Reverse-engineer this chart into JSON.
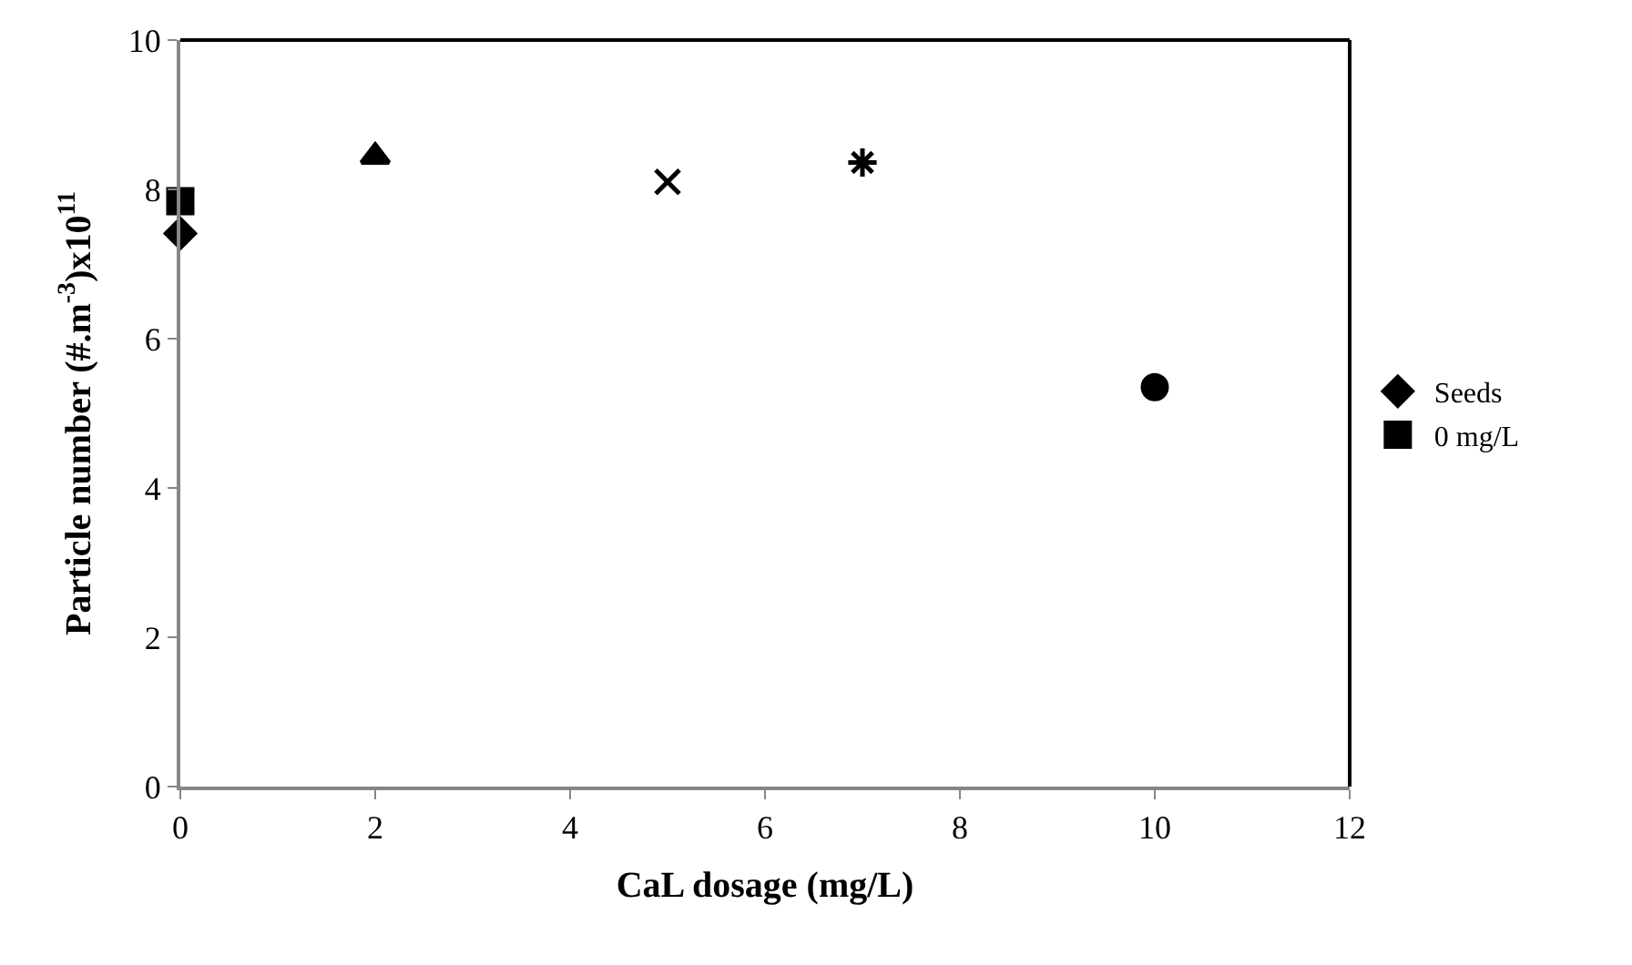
{
  "chart_data": {
    "type": "scatter",
    "xlabel": "CaL dosage (mg/L)",
    "ylabel": "Particle number (#.m$^{-3}$)x10$^{11}$",
    "xlim": [
      0,
      12
    ],
    "xticks": [
      0,
      2,
      4,
      6,
      8,
      10,
      12
    ],
    "ylim": [
      0,
      10
    ],
    "yticks": [
      0,
      2,
      4,
      6,
      8,
      10
    ],
    "legend": "right",
    "series": [
      {
        "name": "Seeds",
        "color": "#000000",
        "marker": "diamond",
        "x": [
          0
        ],
        "values": [
          7.41
        ]
      },
      {
        "name": "0 mg/L",
        "color": "#000000",
        "marker": "square",
        "x": [
          0
        ],
        "values": [
          7.84
        ]
      },
      {
        "color": "#000000",
        "marker": "triangle",
        "x": [
          2
        ],
        "values": [
          8.44
        ]
      },
      {
        "color": "#000000",
        "marker": "cross",
        "x": [
          5
        ],
        "values": [
          8.1
        ]
      },
      {
        "color": "#000000",
        "x": [
          7
        ],
        "values": [
          8.36
        ]
      },
      {
        "color": "#000000",
        "marker": "circle",
        "x": [
          10
        ],
        "values": [
          5.35
        ]
      }
    ]
  }
}
